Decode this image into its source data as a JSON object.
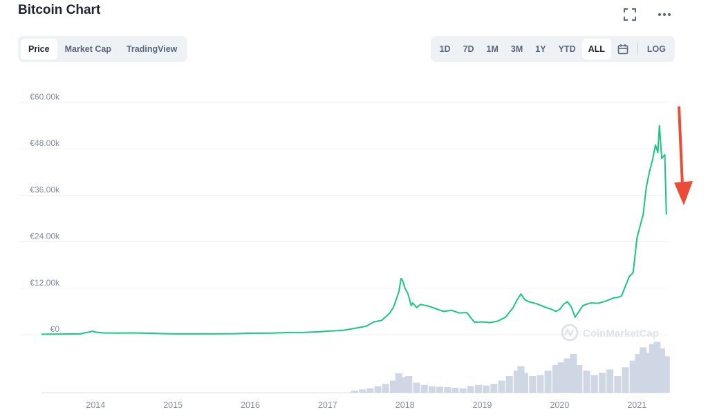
{
  "header": {
    "title": "Bitcoin Chart"
  },
  "icons": {
    "fullscreen": "fullscreen-icon",
    "more": "more-icon",
    "calendar": "calendar-icon",
    "annotation": "red-down-arrow"
  },
  "tabs": [
    {
      "label": "Price",
      "active": true
    },
    {
      "label": "Market Cap",
      "active": false
    },
    {
      "label": "TradingView",
      "active": false
    }
  ],
  "ranges": [
    {
      "label": "1D",
      "active": false
    },
    {
      "label": "7D",
      "active": false
    },
    {
      "label": "1M",
      "active": false
    },
    {
      "label": "3M",
      "active": false
    },
    {
      "label": "1Y",
      "active": false
    },
    {
      "label": "YTD",
      "active": false
    },
    {
      "label": "ALL",
      "active": true
    }
  ],
  "log_label": "LOG",
  "watermark": "CoinMarketCap",
  "colors": {
    "line": "#16c784",
    "volume": "#cfd6e4",
    "grid": "#eff2f5",
    "annotation": "#ea4c35"
  },
  "chart_data": {
    "type": "line",
    "title": "",
    "ylabel": "",
    "xlabel": "",
    "ylim": [
      0,
      60000
    ],
    "xlim": [
      2013.3,
      2021.4
    ],
    "grid": true,
    "yticks": [
      0,
      12000,
      24000,
      36000,
      48000,
      60000
    ],
    "ytick_labels": [
      "€0",
      "€12.00k",
      "€24.00k",
      "€36.00k",
      "€48.00k",
      "€60.00k"
    ],
    "xticks": [
      2014,
      2015,
      2016,
      2017,
      2018,
      2019,
      2020,
      2021
    ],
    "xtick_labels": [
      "2014",
      "2015",
      "2016",
      "2017",
      "2018",
      "2019",
      "2020",
      "2021"
    ],
    "series": [
      {
        "x": [
          2013.3,
          2013.8,
          2013.92,
          2013.96,
          2014.0,
          2014.1,
          2014.3,
          2014.5,
          2014.8,
          2015.0,
          2015.3,
          2015.6,
          2015.8,
          2016.0,
          2016.3,
          2016.5,
          2016.7,
          2016.9,
          2017.0,
          2017.2,
          2017.4,
          2017.5,
          2017.6,
          2017.7,
          2017.8,
          2017.85,
          2017.92,
          2017.95,
          2017.97,
          2018.0,
          2018.04,
          2018.08,
          2018.1,
          2018.15,
          2018.2,
          2018.3,
          2018.4,
          2018.5,
          2018.6,
          2018.7,
          2018.8,
          2018.85,
          2018.9,
          2019.0,
          2019.1,
          2019.2,
          2019.3,
          2019.4,
          2019.45,
          2019.5,
          2019.55,
          2019.6,
          2019.7,
          2019.8,
          2019.9,
          2019.95,
          2020.0,
          2020.05,
          2020.1,
          2020.15,
          2020.2,
          2020.25,
          2020.3,
          2020.4,
          2020.5,
          2020.6,
          2020.7,
          2020.75,
          2020.8,
          2020.85,
          2020.9,
          2020.95,
          2021.0,
          2021.04,
          2021.08,
          2021.12,
          2021.16,
          2021.2,
          2021.24,
          2021.27,
          2021.29,
          2021.32,
          2021.36,
          2021.38
        ],
        "values": [
          100,
          200,
          700,
          900,
          650,
          450,
          400,
          450,
          300,
          200,
          200,
          220,
          250,
          380,
          390,
          550,
          580,
          750,
          900,
          1100,
          1800,
          2200,
          3300,
          3700,
          5500,
          7000,
          11000,
          14500,
          14000,
          12000,
          10500,
          7500,
          8200,
          7000,
          7800,
          7400,
          6700,
          6000,
          6300,
          5600,
          5700,
          4400,
          3200,
          3300,
          3100,
          3500,
          4500,
          7000,
          9000,
          10500,
          9000,
          8500,
          8000,
          7200,
          6500,
          6000,
          6500,
          7800,
          8500,
          7200,
          4500,
          6000,
          7500,
          8200,
          8100,
          8700,
          9500,
          9600,
          10000,
          12500,
          15000,
          16000,
          25000,
          28000,
          31000,
          38000,
          42000,
          45000,
          49000,
          47000,
          54000,
          45500,
          46500,
          31000
        ]
      }
    ],
    "volume": {
      "note": "relative volume bars (0-1)",
      "x": [
        2017.35,
        2017.45,
        2017.55,
        2017.65,
        2017.75,
        2017.85,
        2017.92,
        2017.98,
        2018.05,
        2018.15,
        2018.25,
        2018.35,
        2018.45,
        2018.55,
        2018.65,
        2018.75,
        2018.85,
        2018.95,
        2019.05,
        2019.15,
        2019.25,
        2019.35,
        2019.45,
        2019.5,
        2019.55,
        2019.65,
        2019.75,
        2019.85,
        2019.95,
        2020.02,
        2020.1,
        2020.18,
        2020.25,
        2020.35,
        2020.45,
        2020.55,
        2020.65,
        2020.75,
        2020.85,
        2020.95,
        2021.02,
        2021.08,
        2021.14,
        2021.2,
        2021.26,
        2021.32,
        2021.38
      ],
      "values": [
        0.04,
        0.06,
        0.08,
        0.12,
        0.16,
        0.22,
        0.35,
        0.28,
        0.3,
        0.18,
        0.14,
        0.12,
        0.11,
        0.1,
        0.09,
        0.08,
        0.12,
        0.14,
        0.13,
        0.16,
        0.22,
        0.3,
        0.4,
        0.48,
        0.36,
        0.3,
        0.32,
        0.4,
        0.5,
        0.55,
        0.62,
        0.7,
        0.5,
        0.4,
        0.32,
        0.36,
        0.42,
        0.3,
        0.46,
        0.58,
        0.7,
        0.82,
        0.72,
        0.88,
        0.92,
        0.8,
        0.66
      ]
    }
  }
}
